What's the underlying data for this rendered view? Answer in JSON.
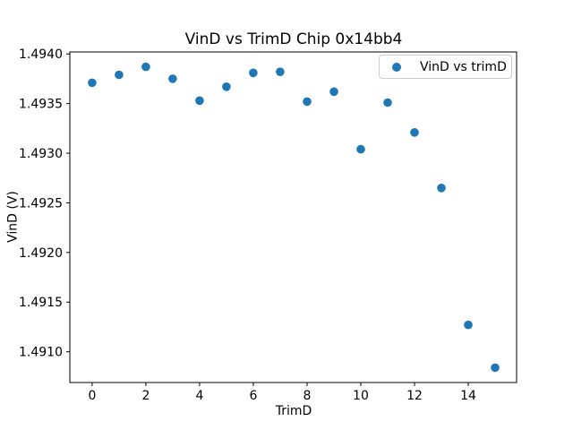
{
  "chart_data": {
    "type": "scatter",
    "title": "VinD vs TrimD Chip 0x14bb4",
    "xlabel": "TrimD",
    "ylabel": "VinD (V)",
    "grid": false,
    "legend_position": "upper right",
    "background_color": "#ffffff",
    "axes_color": "#000000",
    "series": [
      {
        "name": "VinD vs trimD",
        "color": "#1f77b4",
        "x": [
          0,
          1,
          2,
          3,
          4,
          5,
          6,
          7,
          8,
          9,
          10,
          11,
          12,
          13,
          14,
          15
        ],
        "y": [
          1.49371,
          1.49379,
          1.49387,
          1.49375,
          1.49353,
          1.49367,
          1.49381,
          1.49382,
          1.49352,
          1.49362,
          1.49304,
          1.49351,
          1.49321,
          1.49265,
          1.49127,
          1.49084
        ]
      }
    ],
    "xlim": [
      -0.83,
      15.8
    ],
    "ylim": [
      1.49069,
      1.49402
    ],
    "xticks": {
      "values": [
        0,
        2,
        4,
        6,
        8,
        10,
        12,
        14
      ],
      "labels": [
        "0",
        "2",
        "4",
        "6",
        "8",
        "10",
        "12",
        "14"
      ]
    },
    "yticks": {
      "values": [
        1.491,
        1.4915,
        1.492,
        1.4925,
        1.493,
        1.4935,
        1.494
      ],
      "labels": [
        "1.4910",
        "1.4915",
        "1.4920",
        "1.4925",
        "1.4930",
        "1.4935",
        "1.4940"
      ]
    }
  }
}
